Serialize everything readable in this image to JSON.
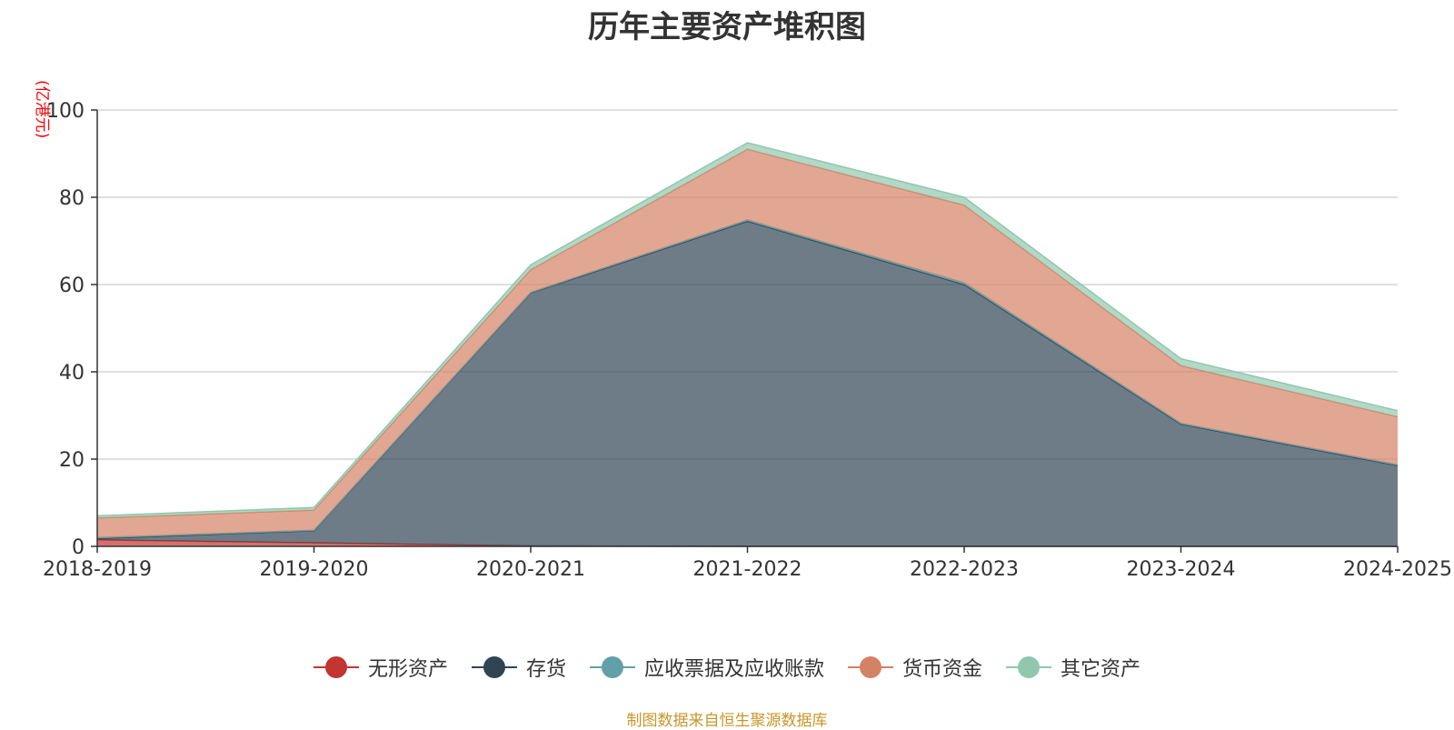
{
  "source_note": "制图数据来自恒生聚源数据库",
  "colors": {
    "intangible": "#c23531",
    "inventory": "#2f4554",
    "receivables": "#61a0a8",
    "cash": "#d48265",
    "other": "#91c7ae",
    "grid": "#cccccc",
    "axis": "#333333",
    "unit": "#ff0000",
    "source": "#c8962a"
  },
  "chart_data": {
    "type": "area",
    "stacked": true,
    "title": "历年主要资产堆积图",
    "unit_label": "(亿港元)",
    "categories": [
      "2018-2019",
      "2019-2020",
      "2020-2021",
      "2021-2022",
      "2022-2023",
      "2023-2024",
      "2024-2025"
    ],
    "ylim": [
      0,
      100
    ],
    "yticks": [
      0,
      20,
      40,
      60,
      80,
      100
    ],
    "grid": true,
    "legend_position": "bottom",
    "series": [
      {
        "name": "无形资产",
        "color_key": "intangible",
        "values": [
          1.5,
          0.8,
          0.1,
          0.0,
          0.0,
          0.0,
          0.0
        ]
      },
      {
        "name": "存货",
        "color_key": "inventory",
        "values": [
          0.3,
          2.8,
          58.0,
          74.5,
          60.0,
          28.0,
          18.5
        ]
      },
      {
        "name": "应收票据及应收账款",
        "color_key": "receivables",
        "values": [
          0.2,
          0.1,
          0.1,
          0.3,
          0.4,
          0.2,
          0.2
        ]
      },
      {
        "name": "货币资金",
        "color_key": "cash",
        "values": [
          4.5,
          4.6,
          5.2,
          16.2,
          17.8,
          13.2,
          11.0
        ]
      },
      {
        "name": "其它资产",
        "color_key": "other",
        "values": [
          0.5,
          0.6,
          1.1,
          1.5,
          1.8,
          1.6,
          1.4
        ]
      }
    ]
  }
}
